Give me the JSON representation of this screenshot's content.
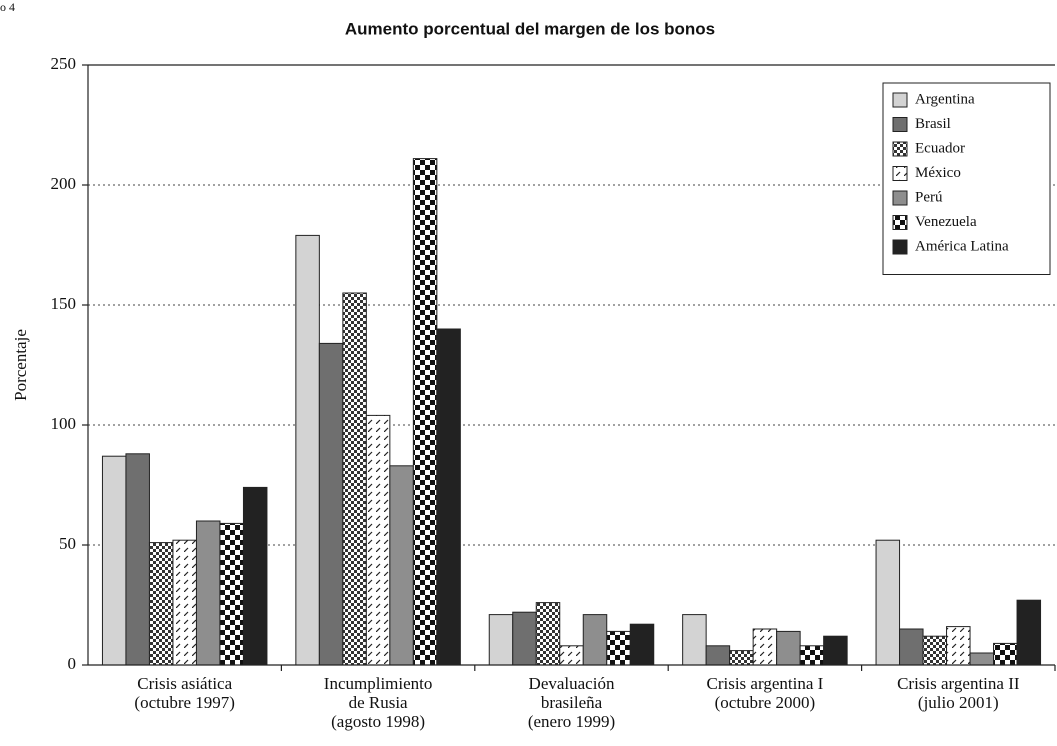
{
  "corner_label": "o 4",
  "chart_data": {
    "type": "bar",
    "title": "Aumento porcentual del margen de los bonos",
    "y_label": "Porcentaje",
    "categories": [
      [
        "Crisis asiática",
        "(octubre 1997)"
      ],
      [
        "Incumplimiento",
        "de Rusia",
        "(agosto 1998)"
      ],
      [
        "Devaluación",
        "brasileña",
        "(enero 1999)"
      ],
      [
        "Crisis argentina I",
        "(octubre 2000)"
      ],
      [
        "Crisis argentina II",
        "(julio 2001)"
      ]
    ],
    "series": [
      {
        "name": "Argentina",
        "color": "#d3d3d3",
        "values": [
          87,
          179,
          21,
          21,
          52
        ]
      },
      {
        "name": "Brasil",
        "color": "#6f6f6f",
        "values": [
          88,
          134,
          22,
          8,
          15
        ]
      },
      {
        "name": "Ecuador",
        "color": "#ffffff",
        "pattern": "fine-check",
        "values": [
          51,
          155,
          26,
          6,
          12
        ]
      },
      {
        "name": "México",
        "color": "#ffffff",
        "pattern": "diagonal-dash",
        "values": [
          52,
          104,
          8,
          15,
          16
        ]
      },
      {
        "name": "Perú",
        "color": "#8e8e8e",
        "values": [
          60,
          83,
          21,
          14,
          5
        ]
      },
      {
        "name": "Venezuela",
        "color": "#ffffff",
        "pattern": "large-check",
        "values": [
          59,
          211,
          14,
          8,
          9
        ]
      },
      {
        "name": "América Latina",
        "color": "#222222",
        "values": [
          74,
          140,
          17,
          12,
          27
        ]
      }
    ],
    "ylim": [
      0,
      250
    ],
    "yticks": [
      0,
      50,
      100,
      150,
      200,
      250
    ],
    "grid": true,
    "legend": "top-right"
  }
}
